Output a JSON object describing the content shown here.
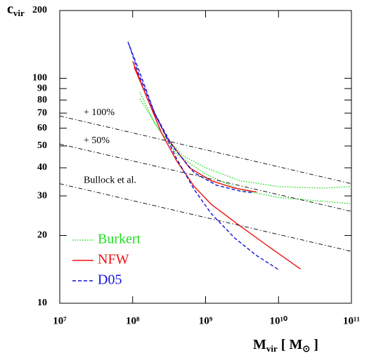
{
  "chart_data": {
    "type": "line",
    "xlabel": [
      {
        "text": "M"
      },
      {
        "text": "vir",
        "sub": true
      },
      {
        "text": " [ M"
      },
      {
        "text": "⊙",
        "sub": true
      },
      {
        "text": " ]"
      }
    ],
    "ylabel": [
      {
        "text": "c"
      },
      {
        "text": "vir",
        "sub": true
      }
    ],
    "log_x": true,
    "log_y": true,
    "xlim": [
      10000000,
      100000000000
    ],
    "ylim": [
      10,
      200
    ],
    "xticks": [
      {
        "value": 10000000,
        "label": "10⁷"
      },
      {
        "value": 100000000,
        "label": "10⁸"
      },
      {
        "value": 1000000000,
        "label": "10⁹"
      },
      {
        "value": 10000000000,
        "label": "10¹⁰"
      },
      {
        "value": 100000000000,
        "label": "10¹¹"
      }
    ],
    "yticks": [
      10,
      20,
      30,
      40,
      50,
      60,
      70,
      80,
      90,
      100,
      200
    ],
    "legend": "lower left",
    "series": [
      {
        "name": "Burkert",
        "color": "#22dd22",
        "style": "dotted",
        "in_legend": true,
        "curves": [
          {
            "x": [
              125000000,
              200000000,
              400000000,
              1000000000,
              3000000000,
              10000000000,
              100000000000
            ],
            "y": [
              87,
              63,
              46,
              37.5,
              32,
              29.5,
              27.7
            ]
          },
          {
            "x": [
              125000000,
              250000000,
              500000000,
              1000000000,
              3000000000,
              10000000000,
              40000000000,
              100000000000
            ],
            "y": [
              81,
              57,
              45,
              40,
              35,
              33,
              32.5,
              33
            ]
          }
        ]
      },
      {
        "name": "NFW",
        "color": "#ee1111",
        "style": "solid",
        "in_legend": true,
        "curves": [
          {
            "x": [
              100000000,
              150000000,
              250000000,
              400000000,
              700000000,
              1200000000,
              3000000000,
              8000000000,
              20000000000
            ],
            "y": [
              119,
              85,
              57,
              43,
              33,
              27.5,
              22,
              17.5,
              14.2
            ]
          },
          {
            "x": [
              105000000,
              180000000,
              300000000,
              600000000,
              1200000000,
              2500000000,
              5000000000
            ],
            "y": [
              112,
              74,
              54,
              40,
              35,
              32.5,
              31.2
            ]
          }
        ]
      },
      {
        "name": "D05",
        "color": "#1111dd",
        "style": "dashed",
        "in_legend": true,
        "curves": [
          {
            "x": [
              86000000,
              120000000,
              200000000,
              400000000,
              700000000,
              1200000000,
              2500000000,
              5000000000,
              10400000000
            ],
            "y": [
              145,
              110,
              70,
              44,
              32,
              25,
              19.5,
              16.3,
              14
            ]
          },
          {
            "x": [
              90000000,
              120000000,
              200000000,
              350000000,
              700000000,
              1400000000,
              3000000000,
              4500000000
            ],
            "y": [
              140,
              105,
              70,
              50,
              38,
              33.5,
              31.5,
              31
            ]
          }
        ]
      },
      {
        "name": "+ 100%",
        "color": "#000000",
        "style": "dashdot",
        "in_legend": false,
        "label_on_line": true,
        "curves": [
          {
            "x": [
              10000000,
              100000000000
            ],
            "y": [
              68,
              34
            ]
          }
        ]
      },
      {
        "name": "+ 50%",
        "color": "#000000",
        "style": "dashdot",
        "in_legend": false,
        "label_on_line": true,
        "curves": [
          {
            "x": [
              10000000,
              100000000000
            ],
            "y": [
              51,
              25.6
            ]
          }
        ]
      },
      {
        "name": "Bullock et al.",
        "color": "#000000",
        "style": "dashdot",
        "in_legend": false,
        "label_on_line": true,
        "curves": [
          {
            "x": [
              10000000,
              100000000000
            ],
            "y": [
              34,
              17
            ]
          }
        ]
      }
    ]
  }
}
